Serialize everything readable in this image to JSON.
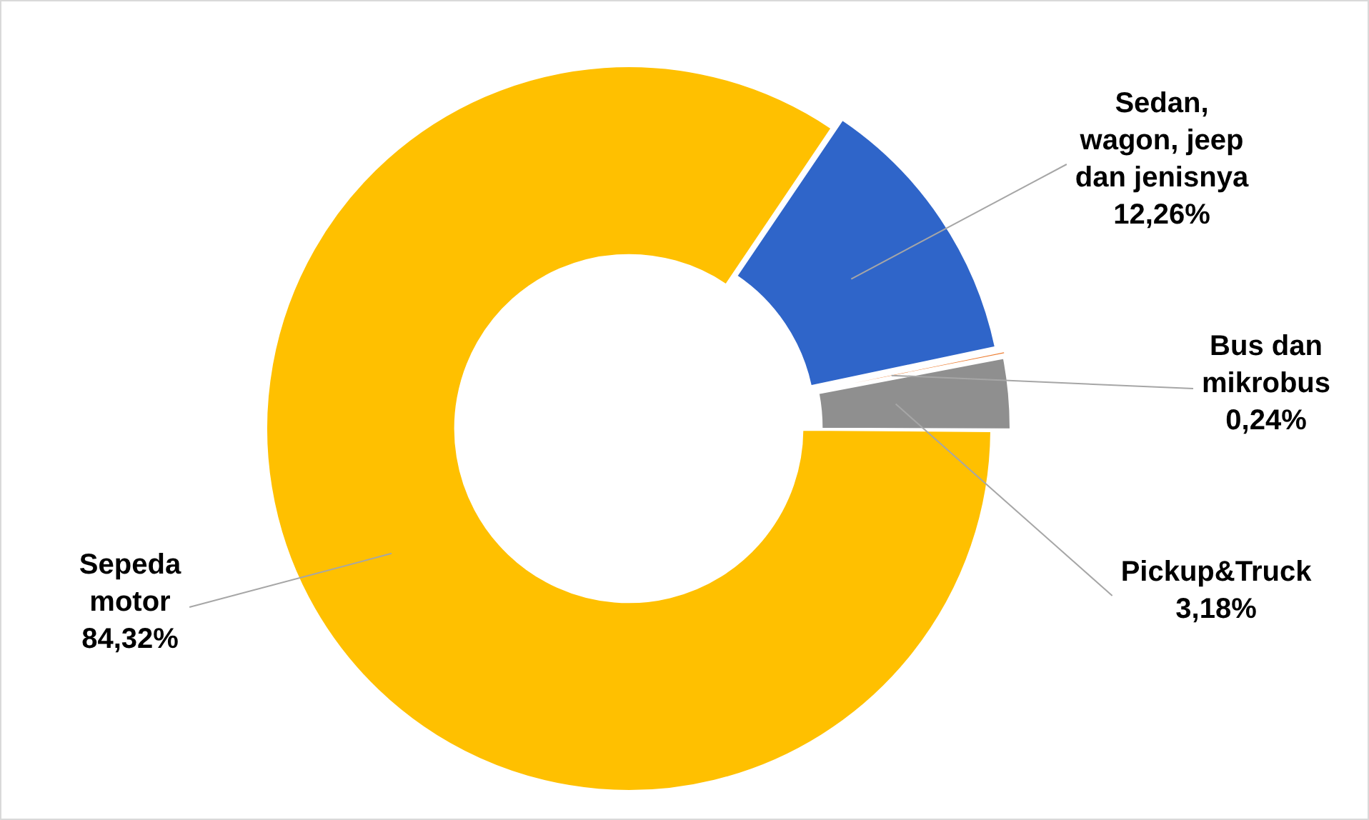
{
  "chart_data": {
    "type": "donut",
    "categories": [
      "Sedan, wagon, jeep dan jenisnya",
      "Bus dan mikrobus",
      "Pickup&Truck",
      "Sepeda motor"
    ],
    "values": [
      12.26,
      0.24,
      3.18,
      84.32
    ],
    "colors": [
      "#2f65c9",
      "#ed7d31",
      "#8f8f8f",
      "#ffc000"
    ],
    "value_labels": [
      "12,26%",
      "0,24%",
      "3,18%",
      "84,32%"
    ],
    "legend": false
  }
}
